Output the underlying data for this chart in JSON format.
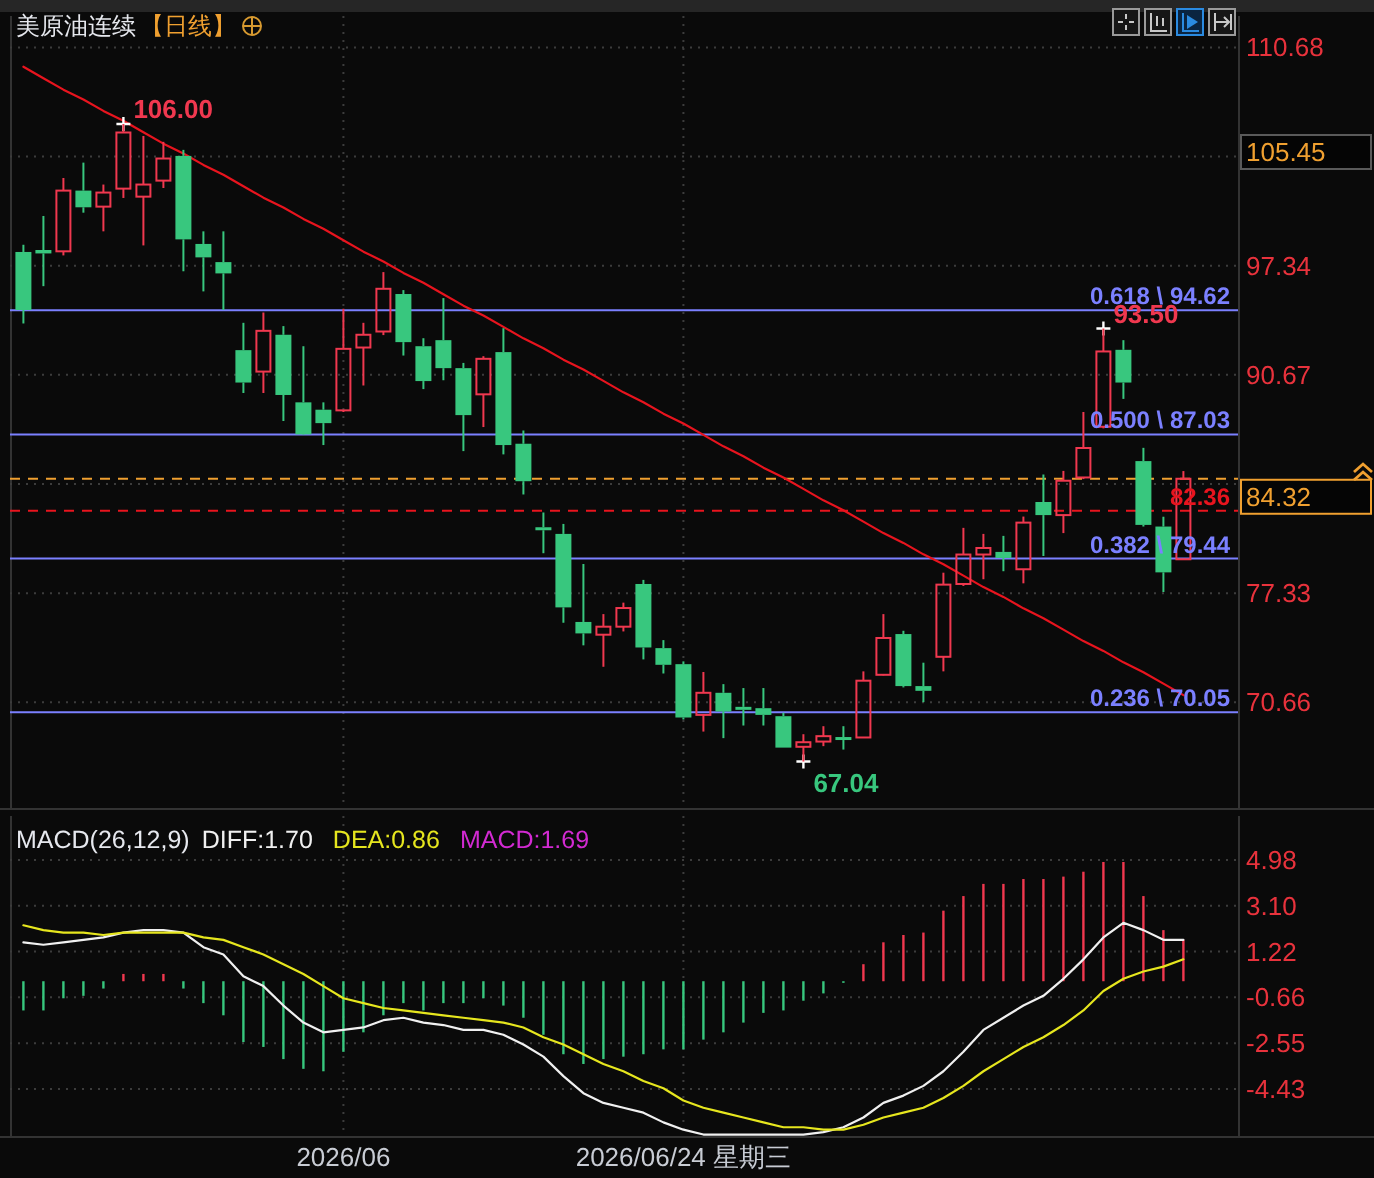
{
  "chart_data": [
    {
      "type": "candlestick",
      "title": "美原油连续",
      "subtitle": "【日线】",
      "categories": [
        null,
        null,
        null,
        null,
        null,
        null,
        null,
        null,
        null,
        null,
        null,
        null,
        null,
        null,
        null,
        null,
        null,
        null,
        null,
        null,
        null,
        null,
        null,
        null,
        null,
        null,
        null,
        null,
        null,
        null,
        null,
        null,
        null,
        null,
        null,
        null,
        null,
        null,
        null,
        null,
        null,
        null,
        null,
        null,
        null,
        null,
        null,
        null,
        null,
        null,
        null,
        null,
        null,
        null,
        null,
        null,
        null,
        null,
        null
      ],
      "ohlc": [
        [
          98.18,
          98.62,
          93.81,
          94.63
        ],
        [
          98.3,
          100.38,
          96.09,
          98.09
        ],
        [
          98.22,
          102.7,
          97.97,
          101.93
        ],
        [
          101.93,
          103.64,
          100.58,
          100.91
        ],
        [
          100.95,
          102.3,
          99.44,
          101.81
        ],
        [
          102.05,
          106.0,
          101.48,
          105.48
        ],
        [
          101.56,
          105.27,
          98.58,
          102.3
        ],
        [
          102.54,
          104.91,
          102.09,
          103.89
        ],
        [
          104.05,
          104.42,
          97.0,
          98.95
        ],
        [
          98.67,
          99.44,
          95.77,
          97.85
        ],
        [
          97.56,
          99.44,
          94.63,
          96.87
        ],
        [
          92.18,
          93.85,
          89.56,
          90.2
        ],
        [
          90.87,
          94.48,
          89.56,
          93.36
        ],
        [
          93.12,
          93.65,
          87.85,
          89.44
        ],
        [
          88.99,
          92.42,
          87.0,
          87.03
        ],
        [
          88.54,
          88.99,
          86.38,
          87.72
        ],
        [
          88.5,
          94.71,
          88.4,
          92.26
        ],
        [
          92.34,
          93.85,
          90.02,
          93.12
        ],
        [
          93.32,
          96.95,
          93.1,
          95.93
        ],
        [
          95.61,
          95.85,
          91.85,
          92.67
        ],
        [
          92.42,
          92.91,
          89.8,
          90.29
        ],
        [
          92.79,
          95.36,
          90.34,
          91.08
        ],
        [
          91.08,
          91.4,
          86.01,
          88.21
        ],
        [
          89.48,
          91.81,
          87.48,
          91.65
        ],
        [
          92.06,
          93.52,
          85.81,
          86.38
        ],
        [
          86.46,
          87.27,
          83.36,
          84.17
        ],
        [
          81.33,
          82.26,
          79.77,
          81.2
        ],
        [
          80.95,
          81.56,
          75.52,
          76.46
        ],
        [
          75.57,
          79.11,
          74.14,
          74.87
        ],
        [
          74.79,
          76.05,
          72.83,
          75.28
        ],
        [
          75.28,
          76.75,
          74.99,
          76.42
        ],
        [
          77.89,
          78.14,
          73.28,
          74.01
        ],
        [
          73.97,
          74.46,
          72.42,
          72.95
        ],
        [
          72.99,
          73.16,
          69.61,
          69.73
        ],
        [
          69.89,
          72.51,
          68.87,
          71.24
        ],
        [
          71.24,
          71.77,
          68.47,
          70.1
        ],
        [
          70.31,
          71.53,
          69.24,
          70.27
        ],
        [
          70.3,
          71.53,
          69.24,
          69.89
        ],
        [
          69.81,
          70.02,
          67.89,
          67.89
        ],
        [
          67.94,
          68.71,
          67.04,
          68.22
        ],
        [
          68.26,
          69.2,
          67.98,
          68.59
        ],
        [
          68.47,
          69.2,
          67.77,
          68.42
        ],
        [
          68.51,
          72.55,
          68.51,
          71.98
        ],
        [
          72.34,
          76.05,
          72.3,
          74.59
        ],
        [
          74.83,
          75.03,
          71.57,
          71.65
        ],
        [
          71.65,
          73.08,
          70.67,
          71.36
        ],
        [
          73.44,
          78.58,
          72.55,
          77.85
        ],
        [
          77.89,
          81.32,
          77.77,
          79.69
        ],
        [
          79.69,
          80.95,
          78.18,
          80.09
        ],
        [
          79.85,
          80.83,
          78.67,
          79.48
        ],
        [
          78.79,
          82.01,
          77.93,
          81.64
        ],
        [
          82.9,
          84.58,
          79.6,
          82.1
        ],
        [
          82.1,
          84.8,
          81.0,
          84.2
        ],
        [
          84.4,
          88.4,
          84.3,
          86.2
        ],
        [
          87.5,
          93.5,
          87.4,
          92.1
        ],
        [
          92.2,
          92.79,
          89.2,
          90.2
        ],
        [
          85.4,
          86.21,
          81.4,
          81.5
        ],
        [
          81.4,
          82.0,
          77.4,
          78.6
        ],
        [
          79.4,
          84.79,
          79.4,
          84.32
        ]
      ],
      "colors": [
        "#38c77e",
        "#38c77e",
        "#f0384f",
        "#38c77e",
        "#f0384f",
        "#f0384f",
        "#f0384f",
        "#f0384f",
        "#38c77e",
        "#38c77e",
        "#38c77e",
        "#38c77e",
        "#f0384f",
        "#38c77e",
        "#38c77e",
        "#38c77e",
        "#f0384f",
        "#f0384f",
        "#f0384f",
        "#38c77e",
        "#38c77e",
        "#38c77e",
        "#38c77e",
        "#f0384f",
        "#38c77e",
        "#38c77e",
        "#38c77e",
        "#38c77e",
        "#38c77e",
        "#f0384f",
        "#f0384f",
        "#38c77e",
        "#38c77e",
        "#38c77e",
        "#f0384f",
        "#38c77e",
        "#38c77e",
        "#38c77e",
        "#38c77e",
        "#f0384f",
        "#f0384f",
        "#38c77e",
        "#f0384f",
        "#f0384f",
        "#38c77e",
        "#38c77e",
        "#f0384f",
        "#f0384f",
        "#f0384f",
        "#38c77e",
        "#f0384f",
        "#38c77e",
        "#f0384f",
        "#f0384f",
        "#f0384f",
        "#38c77e",
        "#38c77e",
        "#38c77e",
        "#f0384f"
      ],
      "series": [
        {
          "type": "line",
          "color": "#e8141e",
          "values": [
            109.5,
            108.8,
            108.1,
            107.5,
            106.8,
            106.2,
            105.5,
            104.8,
            104.2,
            103.5,
            102.9,
            102.2,
            101.5,
            100.9,
            100.2,
            99.6,
            98.9,
            98.2,
            97.6,
            96.9,
            96.3,
            95.6,
            94.9,
            94.3,
            93.6,
            92.9,
            92.3,
            91.6,
            91.0,
            90.3,
            89.6,
            89.0,
            88.3,
            87.7,
            87.0,
            86.3,
            85.7,
            85.0,
            84.4,
            83.7,
            83.0,
            82.4,
            81.7,
            81.0,
            80.4,
            79.7,
            79.1,
            78.4,
            77.7,
            77.1,
            76.4,
            75.8,
            75.1,
            74.4,
            73.8,
            73.1,
            72.5,
            71.8,
            71.1
          ]
        },
        {
          "type": "scatter",
          "marker": "cross",
          "color": "#ffffff",
          "values": [
            null,
            null,
            null,
            null,
            null,
            106.0,
            null,
            null,
            null,
            null,
            null,
            null,
            null,
            null,
            null,
            null,
            null,
            null,
            null,
            null,
            null,
            null,
            null,
            null,
            null,
            null,
            null,
            null,
            null,
            null,
            null,
            null,
            null,
            null,
            null,
            null,
            null,
            null,
            null,
            67.04,
            null,
            null,
            null,
            null,
            null,
            null,
            null,
            null,
            null,
            null,
            null,
            null,
            null,
            null,
            93.5,
            null,
            null,
            null,
            null
          ],
          "value_labels": [
            null,
            null,
            null,
            null,
            null,
            "106.00",
            null,
            null,
            null,
            null,
            null,
            null,
            null,
            null,
            null,
            null,
            null,
            null,
            null,
            null,
            null,
            null,
            null,
            null,
            null,
            null,
            null,
            null,
            null,
            null,
            null,
            null,
            null,
            null,
            null,
            null,
            null,
            null,
            null,
            "67.04",
            null,
            null,
            null,
            null,
            null,
            null,
            null,
            null,
            null,
            null,
            null,
            null,
            null,
            null,
            "93.50",
            null,
            null,
            null,
            null
          ]
        }
      ],
      "ylim": [
        64.2,
        112.6
      ],
      "yticks": [
        110.68,
        {
          "value": 104.01,
          "label": null
        },
        97.34,
        90.67,
        {
          "value": 84.0,
          "label": null
        },
        77.33,
        70.66
      ],
      "tick_labels": "y",
      "grid": true,
      "ref_lines": [
        {
          "axis": "y",
          "value": 94.62,
          "label": "0.618 \\ 94.62",
          "color": "#7b80ff",
          "line_style": "solid"
        },
        {
          "axis": "y",
          "value": 87.03,
          "label": "0.500 \\ 87.03",
          "color": "#7b80ff",
          "line_style": "solid"
        },
        {
          "axis": "y",
          "value": 79.44,
          "label": "0.382 \\ 79.44",
          "color": "#7b80ff",
          "line_style": "solid"
        },
        {
          "axis": "y",
          "value": 70.05,
          "label": "0.236 \\ 70.05",
          "color": "#7b80ff",
          "line_style": "solid"
        },
        {
          "axis": "y",
          "value": 82.36,
          "label": "82.36",
          "color": "#e8141e",
          "line_style": "dashed"
        },
        {
          "axis": "y",
          "value": 84.32,
          "label": "84.32",
          "color": "#f0a030",
          "line_style": "dashed"
        }
      ],
      "annotations": [
        "105.45"
      ]
    },
    {
      "type": "bar",
      "title": "MACD(26,12,9)",
      "categories": [
        null,
        null,
        null,
        null,
        null,
        null,
        null,
        null,
        null,
        null,
        null,
        null,
        null,
        null,
        null,
        null,
        "2026/06",
        null,
        null,
        null,
        null,
        null,
        null,
        null,
        null,
        null,
        null,
        null,
        null,
        null,
        null,
        null,
        null,
        "2026/06/24 星期三",
        null,
        null,
        null,
        null,
        null,
        null,
        null,
        null,
        null,
        null,
        null,
        null,
        null,
        null,
        null,
        null,
        null,
        null,
        null,
        null,
        null,
        null,
        null,
        null,
        null
      ],
      "series": [
        {
          "name": "DIFF:1.70",
          "type": "line",
          "color": "#f0f0f0",
          "values": [
            1.6,
            1.5,
            1.6,
            1.7,
            1.8,
            2.0,
            2.1,
            2.1,
            2.0,
            1.4,
            1.1,
            0.2,
            -0.2,
            -1.0,
            -1.7,
            -2.1,
            -2.0,
            -1.9,
            -1.6,
            -1.5,
            -1.7,
            -1.8,
            -2.0,
            -2.0,
            -2.2,
            -2.6,
            -3.1,
            -3.9,
            -4.6,
            -5.0,
            -5.2,
            -5.4,
            -5.8,
            -6.1,
            -6.3,
            -6.3,
            -6.3,
            -6.3,
            -6.3,
            -6.3,
            -6.2,
            -6.0,
            -5.6,
            -5.0,
            -4.7,
            -4.3,
            -3.7,
            -2.9,
            -2.0,
            -1.5,
            -1.0,
            -0.6,
            0.1,
            0.9,
            1.8,
            2.4,
            2.1,
            1.7,
            1.7
          ]
        },
        {
          "name": "DEA:0.86",
          "type": "line",
          "color": "#e6e61e",
          "values": [
            2.3,
            2.1,
            2.0,
            2.0,
            1.9,
            2.0,
            2.0,
            2.0,
            2.0,
            1.8,
            1.7,
            1.4,
            1.1,
            0.7,
            0.3,
            -0.2,
            -0.7,
            -0.9,
            -1.1,
            -1.2,
            -1.3,
            -1.4,
            -1.5,
            -1.6,
            -1.7,
            -1.9,
            -2.3,
            -2.6,
            -3.0,
            -3.4,
            -3.7,
            -4.1,
            -4.4,
            -4.9,
            -5.2,
            -5.4,
            -5.6,
            -5.8,
            -6.0,
            -6.0,
            -6.1,
            -6.1,
            -5.9,
            -5.6,
            -5.4,
            -5.2,
            -4.8,
            -4.3,
            -3.7,
            -3.2,
            -2.7,
            -2.3,
            -1.8,
            -1.2,
            -0.4,
            0.1,
            0.4,
            0.6,
            0.9
          ]
        },
        {
          "type": "bar",
          "colors": [
            "#38c77e",
            "#38c77e",
            "#38c77e",
            "#38c77e",
            "#38c77e",
            "#f0384f",
            "#f0384f",
            "#f0384f",
            "#38c77e",
            "#38c77e",
            "#38c77e",
            "#38c77e",
            "#38c77e",
            "#38c77e",
            "#38c77e",
            "#38c77e",
            "#38c77e",
            "#38c77e",
            "#38c77e",
            "#38c77e",
            "#38c77e",
            "#38c77e",
            "#38c77e",
            "#38c77e",
            "#38c77e",
            "#38c77e",
            "#38c77e",
            "#38c77e",
            "#38c77e",
            "#38c77e",
            "#38c77e",
            "#38c77e",
            "#38c77e",
            "#38c77e",
            "#38c77e",
            "#38c77e",
            "#38c77e",
            "#38c77e",
            "#38c77e",
            "#38c77e",
            "#38c77e",
            "#38c77e",
            "#f0384f",
            "#f0384f",
            "#f0384f",
            "#f0384f",
            "#f0384f",
            "#f0384f",
            "#f0384f",
            "#f0384f",
            "#f0384f",
            "#f0384f",
            "#f0384f",
            "#f0384f",
            "#f0384f",
            "#f0384f",
            "#f0384f",
            "#f0384f",
            "#f0384f"
          ],
          "values": [
            -1.2,
            -1.2,
            -0.7,
            -0.6,
            -0.3,
            0.3,
            0.3,
            0.3,
            -0.3,
            -0.9,
            -1.4,
            -2.5,
            -2.7,
            -3.2,
            -3.6,
            -3.7,
            -2.9,
            -2.1,
            -1.4,
            -0.9,
            -1.2,
            -0.9,
            -0.9,
            -0.7,
            -1.0,
            -1.5,
            -2.2,
            -3.0,
            -3.4,
            -3.2,
            -3.1,
            -3.0,
            -2.8,
            -2.8,
            -2.4,
            -2.1,
            -1.7,
            -1.3,
            -1.2,
            -0.8,
            -0.5,
            0.0,
            0.7,
            1.6,
            1.9,
            2.0,
            2.9,
            3.5,
            4.0,
            4.0,
            4.2,
            4.2,
            4.3,
            4.5,
            4.9,
            4.9,
            3.5,
            2.1,
            1.7
          ]
        }
      ],
      "ylim": [
        -6.36,
        6.79
      ],
      "yticks": [
        4.98,
        {
          "value": 3.1,
          "label": "3.10"
        },
        1.22,
        -0.66,
        -2.55,
        -4.43
      ],
      "grid": true,
      "legend": "top left",
      "annotations": [
        "MACD:1.69"
      ]
    }
  ]
}
